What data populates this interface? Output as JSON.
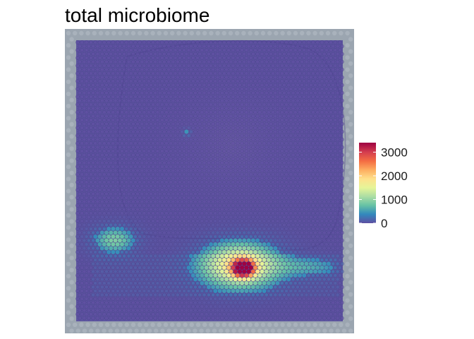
{
  "chart_data": {
    "type": "heatmap",
    "title": "total microbiome",
    "xlabel": "",
    "ylabel": "",
    "legend": {
      "placement": "right",
      "min": 0,
      "max": 3400,
      "ticks": [
        0,
        1000,
        2000,
        3000
      ],
      "tick_labels": [
        "0",
        "1000",
        "2000",
        "3000"
      ],
      "colors": [
        "#5e4fa2",
        "#3288bd",
        "#66c2a5",
        "#abdda4",
        "#e6f598",
        "#fee08b",
        "#fdae61",
        "#f46d43",
        "#d53e4f",
        "#9e0142"
      ]
    },
    "spot_values_note_free": true,
    "hotspots": [
      {
        "region": "lower-left",
        "peak_value": 1100
      },
      {
        "region": "lower-center",
        "peak_value": 3400
      },
      {
        "region": "lower-right",
        "peak_value": 800
      }
    ],
    "background_value": 0,
    "grid": false
  }
}
